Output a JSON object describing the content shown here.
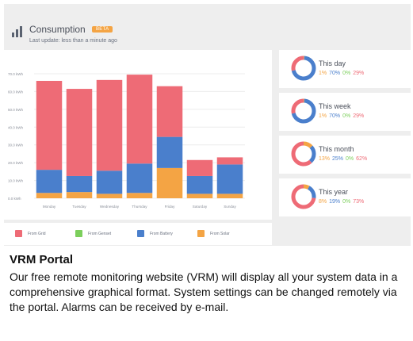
{
  "header": {
    "title": "Consumption",
    "badge": "BETA",
    "last_update": "Last update: less than a minute ago"
  },
  "colors": {
    "grid": "#ee6b76",
    "genset": "#7ccf5c",
    "battery": "#4a7fcc",
    "solar": "#f4a444"
  },
  "chart_data": {
    "type": "bar",
    "stacked": true,
    "categories": [
      "Monday",
      "Tuesday",
      "Wednesday",
      "Thursday",
      "Friday",
      "Saturday",
      "Sunday"
    ],
    "series": [
      {
        "name": "From Solar",
        "color": "#f4a444",
        "values": [
          3,
          3.5,
          2.5,
          3,
          17,
          2.5,
          2.5
        ]
      },
      {
        "name": "From Genset",
        "color": "#7ccf5c",
        "values": [
          0,
          0,
          0,
          0,
          0,
          0,
          0
        ]
      },
      {
        "name": "From Battery",
        "color": "#4a7fcc",
        "values": [
          13,
          9,
          13,
          16.5,
          17.5,
          10,
          16.5
        ]
      },
      {
        "name": "From Grid",
        "color": "#ee6b76",
        "values": [
          50,
          49,
          51,
          50,
          28.5,
          9,
          4
        ]
      }
    ],
    "y_ticks": [
      "0.0 kWh",
      "10.0 kWh",
      "20.0 kWh",
      "30.0 kWh",
      "40.0 kWh",
      "50.0 kWh",
      "60.0 kWh",
      "70.0 kWh"
    ],
    "ylim": [
      0,
      70
    ],
    "grid": true,
    "legend": "bottom"
  },
  "legend": [
    {
      "label": "From Grid",
      "color": "#ee6b76"
    },
    {
      "label": "From Genset",
      "color": "#7ccf5c"
    },
    {
      "label": "From Battery",
      "color": "#4a7fcc"
    },
    {
      "label": "From Solar",
      "color": "#f4a444"
    }
  ],
  "summary": [
    {
      "title": "This day",
      "pcts": [
        "1%",
        "70%",
        "0%",
        "29%"
      ],
      "values": [
        1,
        70,
        0,
        29
      ]
    },
    {
      "title": "This week",
      "pcts": [
        "1%",
        "70%",
        "0%",
        "29%"
      ],
      "values": [
        1,
        70,
        0,
        29
      ]
    },
    {
      "title": "This month",
      "pcts": [
        "13%",
        "25%",
        "0%",
        "62%"
      ],
      "values": [
        13,
        25,
        0,
        62
      ]
    },
    {
      "title": "This year",
      "pcts": [
        "8%",
        "19%",
        "0%",
        "73%"
      ],
      "values": [
        8,
        19,
        0,
        73
      ]
    }
  ],
  "caption": {
    "title": "VRM Portal",
    "body": "Our free remote monitoring website (VRM) will display all your system data in a comprehensive graphical format. System settings can be changed remotely via the portal. Alarms can be received by e-mail."
  }
}
